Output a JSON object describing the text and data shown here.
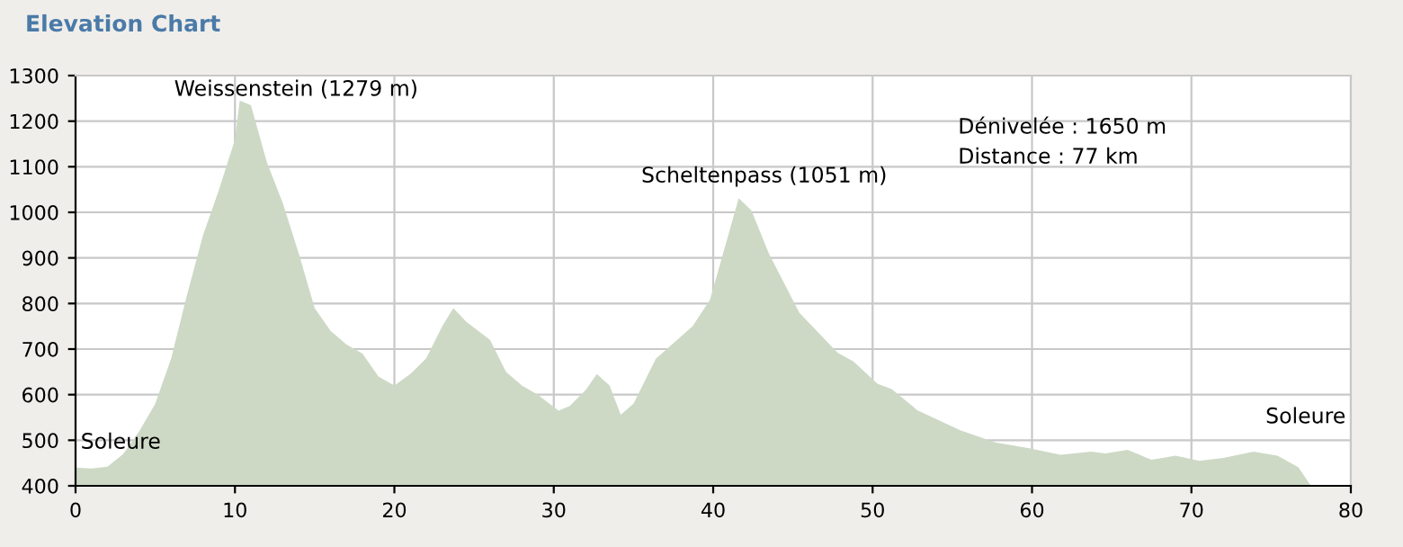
{
  "chart_data": {
    "type": "area",
    "title": "Elevation Chart",
    "x": [
      0,
      1,
      2,
      3,
      4,
      5,
      6,
      7,
      8,
      9,
      10,
      10.3,
      11,
      12,
      13,
      14,
      15,
      16,
      17,
      18,
      19,
      20,
      21,
      22,
      23,
      23.7,
      24.5,
      26,
      27,
      28,
      29,
      30.3,
      31,
      32,
      32.7,
      33.5,
      34.2,
      35,
      36.4,
      38.7,
      39.8,
      41.6,
      42.4,
      43.5,
      45.4,
      47.8,
      48.8,
      50.3,
      51.2,
      52.8,
      55.5,
      57.7,
      59.9,
      61.8,
      63.7,
      64.6,
      66,
      67.5,
      69,
      70.5,
      72,
      73.9,
      75.4,
      76.7,
      77.5
    ],
    "series": [
      {
        "color": "#cdd9c5",
        "values": [
          440,
          438,
          442,
          470,
          520,
          580,
          680,
          820,
          950,
          1050,
          1160,
          1245,
          1235,
          1110,
          1020,
          910,
          790,
          740,
          710,
          690,
          640,
          620,
          645,
          680,
          750,
          790,
          760,
          720,
          650,
          620,
          600,
          565,
          575,
          610,
          645,
          620,
          556,
          580,
          679,
          750,
          808,
          1031,
          1004,
          909,
          780,
          692,
          673,
          624,
          612,
          566,
          522,
          495,
          482,
          468,
          475,
          471,
          479,
          457,
          466,
          455,
          461,
          475,
          466,
          441,
          400
        ]
      }
    ],
    "xlim": [
      0,
      80
    ],
    "ylim": [
      400,
      1300
    ],
    "xticks": [
      0,
      10,
      20,
      30,
      40,
      50,
      60,
      70,
      80
    ],
    "yticks": [
      400,
      500,
      600,
      700,
      800,
      900,
      1000,
      1100,
      1200,
      1300
    ],
    "grid": true,
    "annotations": [
      "Weissenstein (1279 m)",
      "Scheltenpass (1051 m)",
      "Soleure",
      "Soleure",
      "Dénivelée : 1650 m",
      "Distance : 77 km"
    ]
  }
}
